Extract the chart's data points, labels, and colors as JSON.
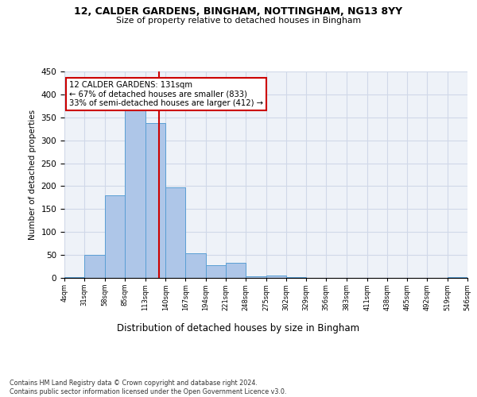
{
  "title1": "12, CALDER GARDENS, BINGHAM, NOTTINGHAM, NG13 8YY",
  "title2": "Size of property relative to detached houses in Bingham",
  "xlabel": "Distribution of detached houses by size in Bingham",
  "ylabel": "Number of detached properties",
  "bar_color": "#aec6e8",
  "bar_edge_color": "#5a9fd4",
  "bin_edges": [
    4,
    31,
    58,
    85,
    113,
    140,
    167,
    194,
    221,
    248,
    275,
    302,
    329,
    356,
    383,
    411,
    438,
    465,
    492,
    519,
    546
  ],
  "bar_heights": [
    2,
    50,
    180,
    365,
    338,
    198,
    54,
    28,
    33,
    3,
    6,
    1,
    0,
    0,
    0,
    0,
    0,
    0,
    0,
    2
  ],
  "property_size": 131,
  "vline_color": "#cc0000",
  "annotation_text": "12 CALDER GARDENS: 131sqm\n← 67% of detached houses are smaller (833)\n33% of semi-detached houses are larger (412) →",
  "annotation_box_color": "white",
  "annotation_box_edge_color": "#cc0000",
  "grid_color": "#d0d8e8",
  "background_color": "#eef2f8",
  "footer_text": "Contains HM Land Registry data © Crown copyright and database right 2024.\nContains public sector information licensed under the Open Government Licence v3.0.",
  "ylim": [
    0,
    450
  ],
  "yticks": [
    0,
    50,
    100,
    150,
    200,
    250,
    300,
    350,
    400,
    450
  ]
}
